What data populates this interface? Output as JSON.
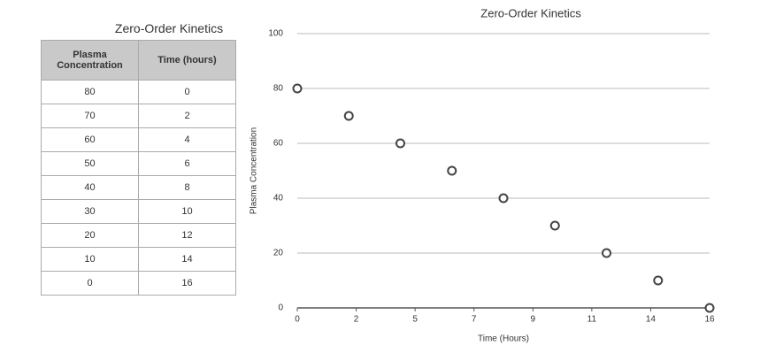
{
  "table": {
    "title": "Zero-Order Kinetics",
    "headers": [
      "Plasma Concentration",
      "Time (hours)"
    ],
    "rows": [
      [
        "80",
        "0"
      ],
      [
        "70",
        "2"
      ],
      [
        "60",
        "4"
      ],
      [
        "50",
        "6"
      ],
      [
        "40",
        "8"
      ],
      [
        "30",
        "10"
      ],
      [
        "20",
        "12"
      ],
      [
        "10",
        "14"
      ],
      [
        "0",
        "16"
      ]
    ]
  },
  "chart_data": {
    "type": "scatter",
    "title": "Zero-Order Kinetics",
    "x_label": "Time (Hours)",
    "y_label": "Plasma Concentration",
    "x": [
      0,
      2,
      4,
      6,
      8,
      10,
      12,
      14,
      16
    ],
    "values": [
      80,
      70,
      60,
      50,
      40,
      30,
      20,
      10,
      0
    ],
    "color": "#444444",
    "xlim": [
      0,
      16
    ],
    "xticks": [
      0,
      {
        "value": 2.2857,
        "label": "2"
      },
      {
        "value": 4.5714,
        "label": "5"
      },
      {
        "value": 6.8571,
        "label": "7"
      },
      {
        "value": 9.1429,
        "label": "9"
      },
      {
        "value": 11.4286,
        "label": "11"
      },
      {
        "value": 13.7143,
        "label": "14"
      },
      16
    ],
    "ylim": [
      0,
      100
    ],
    "yticks": [
      0,
      20,
      40,
      60,
      80,
      100
    ],
    "grid": true
  }
}
